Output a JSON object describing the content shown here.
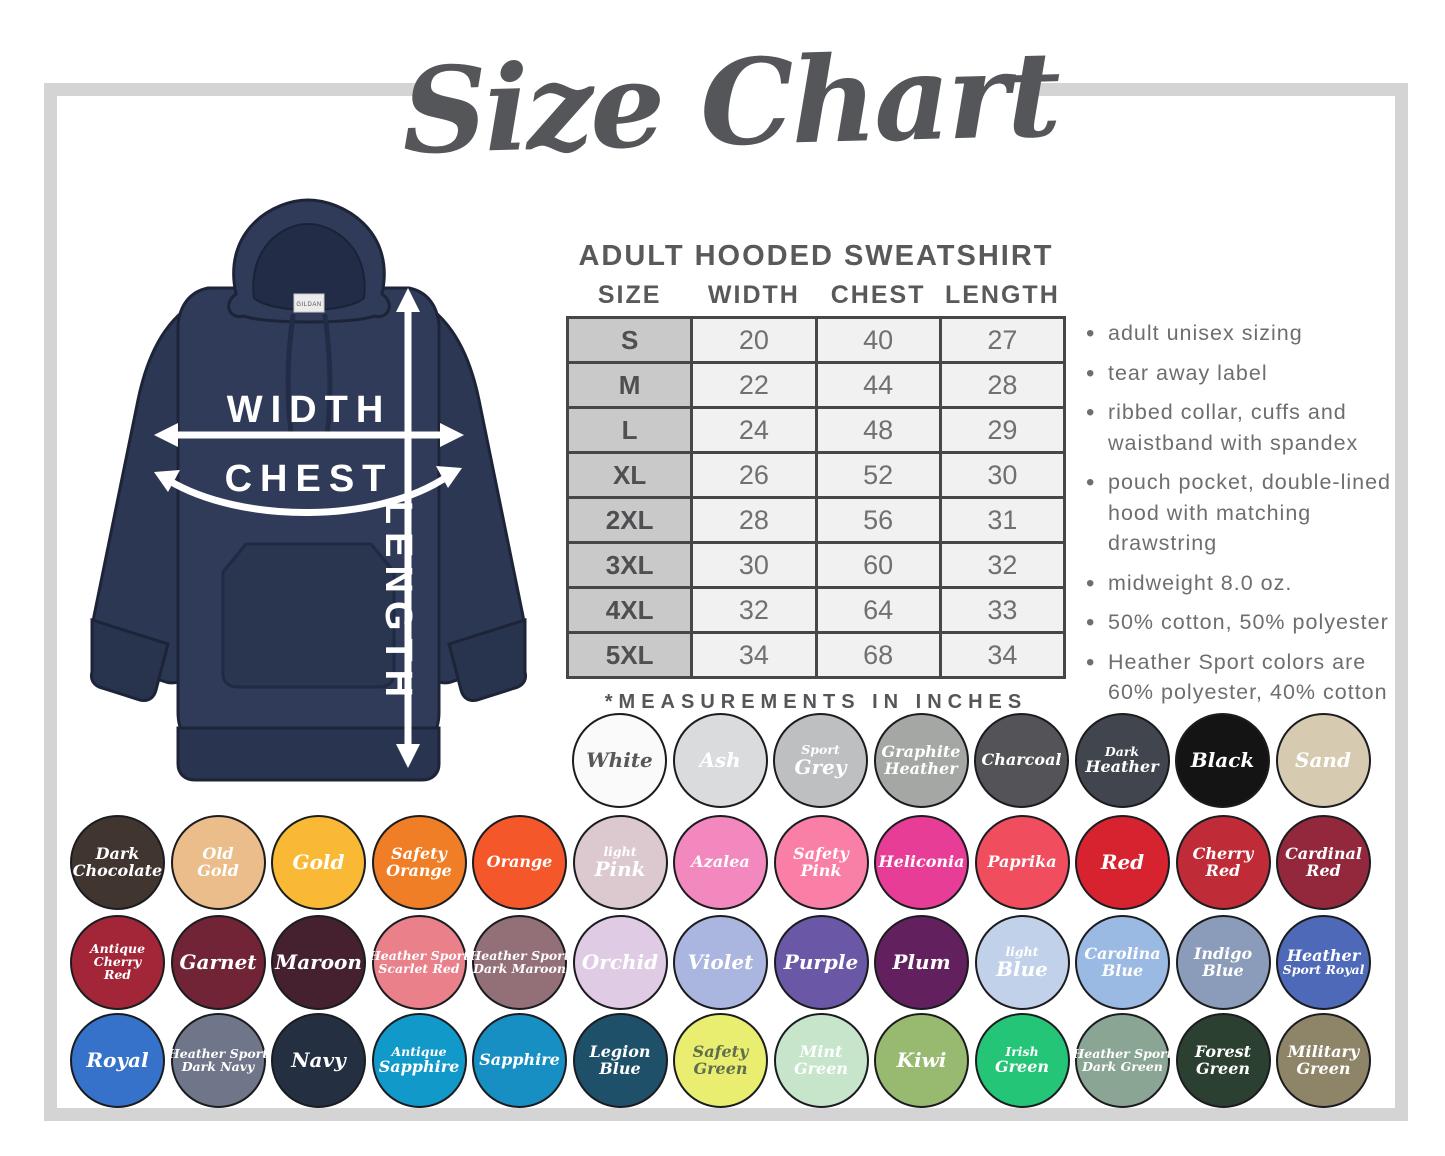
{
  "title": "Size Chart",
  "diagram": {
    "width_label": "WIDTH",
    "chest_label": "CHEST",
    "length_label": "LENGTH",
    "tag_label": "GILDAN",
    "hoodie_color": "#2f3b58"
  },
  "size_table": {
    "title": "ADULT HOODED SWEATSHIRT",
    "columns": [
      "SIZE",
      "WIDTH",
      "CHEST",
      "LENGTH"
    ],
    "rows": [
      [
        "S",
        "20",
        "40",
        "27"
      ],
      [
        "M",
        "22",
        "44",
        "28"
      ],
      [
        "L",
        "24",
        "48",
        "29"
      ],
      [
        "XL",
        "26",
        "52",
        "30"
      ],
      [
        "2XL",
        "28",
        "56",
        "31"
      ],
      [
        "3XL",
        "30",
        "60",
        "32"
      ],
      [
        "4XL",
        "32",
        "64",
        "33"
      ],
      [
        "5XL",
        "34",
        "68",
        "34"
      ]
    ],
    "footnote": "*MEASUREMENTS IN INCHES"
  },
  "features": [
    "adult unisex sizing",
    "tear away label",
    "ribbed collar, cuffs and waistband with spandex",
    "pouch pocket, double-lined hood with matching drawstring",
    "midweight 8.0 oz.",
    "50% cotton, 50% polyester",
    "Heather Sport colors are 60% polyester, 40% cotton"
  ],
  "palette": {
    "frame": "#d4d4d4",
    "heading": "#58595b",
    "bullet_text": "#6e6e6e",
    "table_border": "#474747",
    "size_cell_bg": "#c9c9c9",
    "data_cell_bg": "#f1f1f2"
  },
  "swatches": {
    "rows": [
      [
        {
          "name": "White",
          "hex": "#fafafa",
          "text": "#58585a",
          "lines": [
            {
              "t": "White",
              "s": "lg"
            }
          ]
        },
        {
          "name": "Ash",
          "hex": "#d9dbdd",
          "lines": [
            {
              "t": "Ash",
              "s": "lg"
            }
          ]
        },
        {
          "name": "Sport Grey",
          "hex": "#bdbfc1",
          "lines": [
            {
              "t": "Sport",
              "s": "sm"
            },
            {
              "t": "Grey",
              "s": "lg"
            }
          ]
        },
        {
          "name": "Graphite Heather",
          "hex": "#a5a7a4",
          "lines": [
            {
              "t": "Graphite",
              "s": "md"
            },
            {
              "t": "Heather",
              "s": "md"
            }
          ]
        },
        {
          "name": "Charcoal",
          "hex": "#545458",
          "lines": [
            {
              "t": "Charcoal",
              "s": "md"
            }
          ]
        },
        {
          "name": "Dark Heather",
          "hex": "#41454e",
          "lines": [
            {
              "t": "Dark",
              "s": "sm"
            },
            {
              "t": "Heather",
              "s": "md"
            }
          ]
        },
        {
          "name": "Black",
          "hex": "#141414",
          "lines": [
            {
              "t": "Black",
              "s": "lg"
            }
          ]
        },
        {
          "name": "Sand",
          "hex": "#d6cab0",
          "lines": [
            {
              "t": "Sand",
              "s": "lg"
            }
          ]
        }
      ],
      [
        {
          "name": "Dark Chocolate",
          "hex": "#413530",
          "lines": [
            {
              "t": "Dark",
              "s": "md"
            },
            {
              "t": "Chocolate",
              "s": "md"
            }
          ]
        },
        {
          "name": "Old Gold",
          "hex": "#eabd8a",
          "lines": [
            {
              "t": "Old",
              "s": "md"
            },
            {
              "t": "Gold",
              "s": "md"
            }
          ]
        },
        {
          "name": "Gold",
          "hex": "#f9b935",
          "lines": [
            {
              "t": "Gold",
              "s": "lg"
            }
          ]
        },
        {
          "name": "Safety Orange",
          "hex": "#f07e27",
          "lines": [
            {
              "t": "Safety",
              "s": "md"
            },
            {
              "t": "Orange",
              "s": "md"
            }
          ]
        },
        {
          "name": "Orange",
          "hex": "#f4582a",
          "lines": [
            {
              "t": "Orange",
              "s": "md"
            }
          ]
        },
        {
          "name": "Light Pink",
          "hex": "#dcc9cf",
          "lines": [
            {
              "t": "light",
              "s": "sm"
            },
            {
              "t": "Pink",
              "s": "lg"
            }
          ]
        },
        {
          "name": "Azalea",
          "hex": "#f288bd",
          "lines": [
            {
              "t": "Azalea",
              "s": "md"
            }
          ]
        },
        {
          "name": "Safety Pink",
          "hex": "#fa7fa7",
          "lines": [
            {
              "t": "Safety",
              "s": "md"
            },
            {
              "t": "Pink",
              "s": "md"
            }
          ]
        },
        {
          "name": "Heliconia",
          "hex": "#e83d96",
          "lines": [
            {
              "t": "Heliconia",
              "s": "md"
            }
          ]
        },
        {
          "name": "Paprika",
          "hex": "#f04d5e",
          "lines": [
            {
              "t": "Paprika",
              "s": "md"
            }
          ]
        },
        {
          "name": "Red",
          "hex": "#d7232f",
          "lines": [
            {
              "t": "Red",
              "s": "lg"
            }
          ]
        },
        {
          "name": "Cherry Red",
          "hex": "#bf2b36",
          "lines": [
            {
              "t": "Cherry",
              "s": "md"
            },
            {
              "t": "Red",
              "s": "md"
            }
          ]
        },
        {
          "name": "Cardinal Red",
          "hex": "#93283c",
          "lines": [
            {
              "t": "Cardinal",
              "s": "md"
            },
            {
              "t": "Red",
              "s": "md"
            }
          ]
        }
      ],
      [
        {
          "name": "Antique Cherry Red",
          "hex": "#a32638",
          "lines": [
            {
              "t": "Antique",
              "s": "sm"
            },
            {
              "t": "Cherry",
              "s": "sm"
            },
            {
              "t": "Red",
              "s": "sm"
            }
          ]
        },
        {
          "name": "Garnet",
          "hex": "#702435",
          "lines": [
            {
              "t": "Garnet",
              "s": "lg"
            }
          ]
        },
        {
          "name": "Maroon",
          "hex": "#45202e",
          "lines": [
            {
              "t": "Maroon",
              "s": "lg"
            }
          ]
        },
        {
          "name": "Heather Sport Scarlet Red",
          "hex": "#e9808a",
          "lines": [
            {
              "t": "Heather Sport",
              "s": "sm"
            },
            {
              "t": "Scarlet Red",
              "s": "sm"
            }
          ]
        },
        {
          "name": "Heather Sport Dark Maroon",
          "hex": "#937078",
          "lines": [
            {
              "t": "Heather Sport",
              "s": "sm"
            },
            {
              "t": "Dark Maroon",
              "s": "sm"
            }
          ]
        },
        {
          "name": "Orchid",
          "hex": "#e0cbe4",
          "lines": [
            {
              "t": "Orchid",
              "s": "lg"
            }
          ]
        },
        {
          "name": "Violet",
          "hex": "#aab6e0",
          "lines": [
            {
              "t": "Violet",
              "s": "lg"
            }
          ]
        },
        {
          "name": "Purple",
          "hex": "#6a57a5",
          "lines": [
            {
              "t": "Purple",
              "s": "lg"
            }
          ]
        },
        {
          "name": "Plum",
          "hex": "#62205f",
          "lines": [
            {
              "t": "Plum",
              "s": "lg"
            }
          ]
        },
        {
          "name": "Light Blue",
          "hex": "#c2d1ea",
          "lines": [
            {
              "t": "light",
              "s": "sm"
            },
            {
              "t": "Blue",
              "s": "lg"
            }
          ]
        },
        {
          "name": "Carolina Blue",
          "hex": "#9abae4",
          "lines": [
            {
              "t": "Carolina",
              "s": "md"
            },
            {
              "t": "Blue",
              "s": "md"
            }
          ]
        },
        {
          "name": "Indigo Blue",
          "hex": "#8a9cba",
          "lines": [
            {
              "t": "Indigo",
              "s": "md"
            },
            {
              "t": "Blue",
              "s": "md"
            }
          ]
        },
        {
          "name": "Heather Sport Royal",
          "hex": "#4e69b8",
          "lines": [
            {
              "t": "Heather",
              "s": "md"
            },
            {
              "t": "Sport Royal",
              "s": "sm"
            }
          ]
        }
      ],
      [
        {
          "name": "Royal",
          "hex": "#3672c9",
          "lines": [
            {
              "t": "Royal",
              "s": "lg"
            }
          ]
        },
        {
          "name": "Heather Sport Dark Navy",
          "hex": "#707689",
          "lines": [
            {
              "t": "Heather Sport",
              "s": "sm"
            },
            {
              "t": "Dark Navy",
              "s": "sm"
            }
          ]
        },
        {
          "name": "Navy",
          "hex": "#252f42",
          "lines": [
            {
              "t": "Navy",
              "s": "lg"
            }
          ]
        },
        {
          "name": "Antique Sapphire",
          "hex": "#1099c9",
          "lines": [
            {
              "t": "Antique",
              "s": "sm"
            },
            {
              "t": "Sapphire",
              "s": "md"
            }
          ]
        },
        {
          "name": "Sapphire",
          "hex": "#188fc2",
          "lines": [
            {
              "t": "Sapphire",
              "s": "md"
            }
          ]
        },
        {
          "name": "Legion Blue",
          "hex": "#1f506a",
          "lines": [
            {
              "t": "Legion",
              "s": "md"
            },
            {
              "t": "Blue",
              "s": "md"
            }
          ]
        },
        {
          "name": "Safety Green",
          "hex": "#e9ee70",
          "text": "#5f6e4e",
          "lines": [
            {
              "t": "Safety",
              "s": "md"
            },
            {
              "t": "Green",
              "s": "md"
            }
          ]
        },
        {
          "name": "Mint Green",
          "hex": "#c6e5cb",
          "lines": [
            {
              "t": "Mint",
              "s": "md"
            },
            {
              "t": "Green",
              "s": "md"
            }
          ]
        },
        {
          "name": "Kiwi",
          "hex": "#98ba70",
          "lines": [
            {
              "t": "Kiwi",
              "s": "lg"
            }
          ]
        },
        {
          "name": "Irish Green",
          "hex": "#25c577",
          "lines": [
            {
              "t": "Irish",
              "s": "sm"
            },
            {
              "t": "Green",
              "s": "md"
            }
          ]
        },
        {
          "name": "Heather Sport Dark Green",
          "hex": "#8ba595",
          "lines": [
            {
              "t": "Heather Sport",
              "s": "sm"
            },
            {
              "t": "Dark Green",
              "s": "sm"
            }
          ]
        },
        {
          "name": "Forest Green",
          "hex": "#2c4032",
          "lines": [
            {
              "t": "Forest",
              "s": "md"
            },
            {
              "t": "Green",
              "s": "md"
            }
          ]
        },
        {
          "name": "Military Green",
          "hex": "#8e8569",
          "lines": [
            {
              "t": "Military",
              "s": "md"
            },
            {
              "t": "Green",
              "s": "md"
            }
          ]
        }
      ]
    ]
  }
}
